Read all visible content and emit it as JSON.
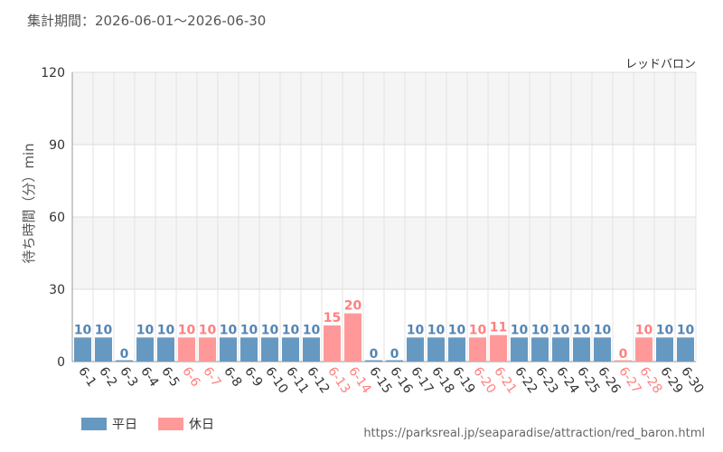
{
  "header": {
    "period_label": "集計期間：2026-06-01～2026-06-30"
  },
  "footer": {
    "source_url": "https://parksreal.jp/seaparadise/attraction/red_baron.html"
  },
  "colors": {
    "weekday": "#6699c2",
    "holiday": "#ff9999",
    "weekday_text": "#5585b5",
    "holiday_text": "#ff8080",
    "axis_text": "#333333"
  },
  "chart_data": {
    "type": "bar",
    "title": "レッドバロン",
    "ylabel": "待ち時間（分）min",
    "xlabel": "",
    "ylim": [
      0,
      120
    ],
    "yticks": [
      0,
      30,
      60,
      90,
      120
    ],
    "grid": true,
    "legend_position": "bottom-left",
    "categories": [
      "6-1",
      "6-2",
      "6-3",
      "6-4",
      "6-5",
      "6-6",
      "6-7",
      "6-8",
      "6-9",
      "6-10",
      "6-11",
      "6-12",
      "6-13",
      "6-14",
      "6-15",
      "6-16",
      "6-17",
      "6-18",
      "6-19",
      "6-20",
      "6-21",
      "6-22",
      "6-23",
      "6-24",
      "6-25",
      "6-26",
      "6-27",
      "6-28",
      "6-29",
      "6-30"
    ],
    "values": [
      10,
      10,
      0,
      10,
      10,
      10,
      10,
      10,
      10,
      10,
      10,
      10,
      15,
      20,
      0,
      0,
      10,
      10,
      10,
      10,
      11,
      10,
      10,
      10,
      10,
      10,
      0,
      10,
      10,
      10
    ],
    "day_type": [
      "平日",
      "平日",
      "平日",
      "平日",
      "平日",
      "休日",
      "休日",
      "平日",
      "平日",
      "平日",
      "平日",
      "平日",
      "休日",
      "休日",
      "平日",
      "平日",
      "平日",
      "平日",
      "平日",
      "休日",
      "休日",
      "平日",
      "平日",
      "平日",
      "平日",
      "平日",
      "休日",
      "休日",
      "平日",
      "平日"
    ],
    "series": [
      {
        "name": "平日"
      },
      {
        "name": "休日"
      }
    ]
  }
}
